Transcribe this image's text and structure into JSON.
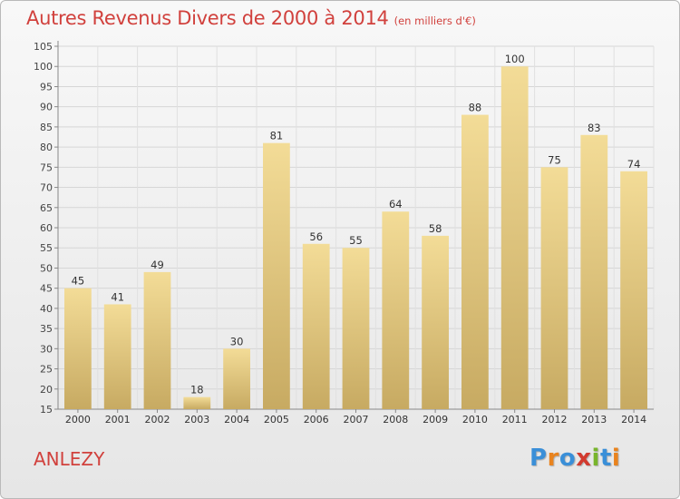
{
  "header": {
    "title": "Autres Revenus Divers de 2000 à 2014",
    "subtitle": "(en milliers d'€)"
  },
  "footer": {
    "location": "ANLEZY",
    "logo": "Proxiti"
  },
  "colors": {
    "title": "#d1413d",
    "bar_light": "#f3dc97",
    "bar_dark": "#c7aa62",
    "logo_letters": [
      "#3a8fd8",
      "#e9831e",
      "#3a8fd8",
      "#d23b2f",
      "#78b52c",
      "#3a8fd8",
      "#e9831e"
    ]
  },
  "chart_data": {
    "type": "bar",
    "categories": [
      "2000",
      "2001",
      "2002",
      "2003",
      "2004",
      "2005",
      "2006",
      "2007",
      "2008",
      "2009",
      "2010",
      "2011",
      "2012",
      "2013",
      "2014"
    ],
    "values": [
      45,
      41,
      49,
      18,
      30,
      81,
      56,
      55,
      64,
      58,
      88,
      100,
      75,
      83,
      74
    ],
    "title": "Autres Revenus Divers de 2000 à 2014",
    "subtitle": "(en milliers d'€)",
    "xlabel": "",
    "ylabel": "",
    "ylim": [
      15,
      105
    ],
    "yticks": [
      15,
      20,
      25,
      30,
      35,
      40,
      45,
      50,
      55,
      60,
      65,
      70,
      75,
      80,
      85,
      90,
      95,
      100,
      105
    ],
    "grid": true,
    "legend": "none"
  }
}
